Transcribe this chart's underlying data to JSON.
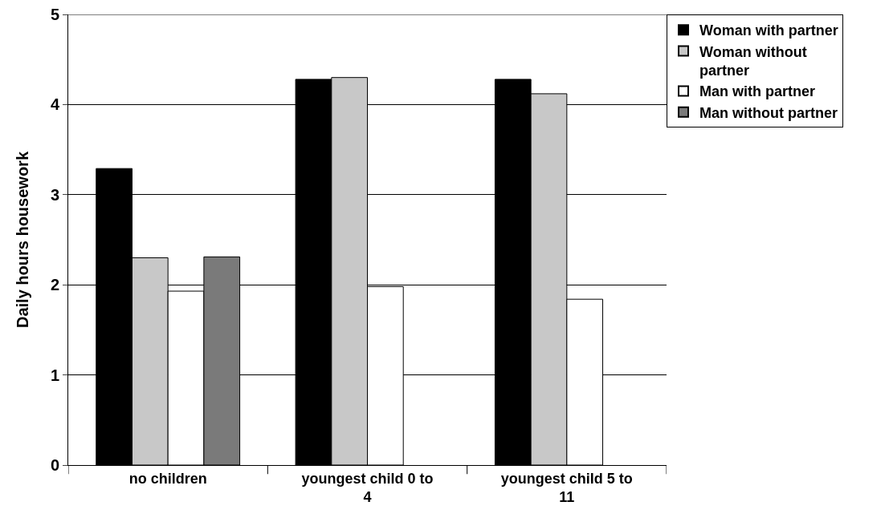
{
  "chart_data": {
    "type": "bar",
    "ylabel": "Daily hours housework",
    "categories": [
      "no children",
      "youngest child 0 to 4",
      "youngest child 5 to 11"
    ],
    "series": [
      {
        "name": "Woman with partner",
        "color": "#000000",
        "values": [
          3.29,
          4.28,
          4.28
        ]
      },
      {
        "name": "Woman without partner",
        "color": "#c8c8c8",
        "values": [
          2.3,
          4.3,
          4.12
        ]
      },
      {
        "name": "Man with partner",
        "color": "#ffffff",
        "values": [
          1.93,
          1.98,
          1.84
        ]
      },
      {
        "name": "Man without partner",
        "color": "#7a7a7a",
        "values": [
          2.31,
          null,
          null
        ]
      }
    ],
    "ylim": [
      0,
      5
    ],
    "yticks": [
      0,
      1,
      2,
      3,
      4,
      5
    ],
    "grid": "y",
    "legend": "right"
  }
}
